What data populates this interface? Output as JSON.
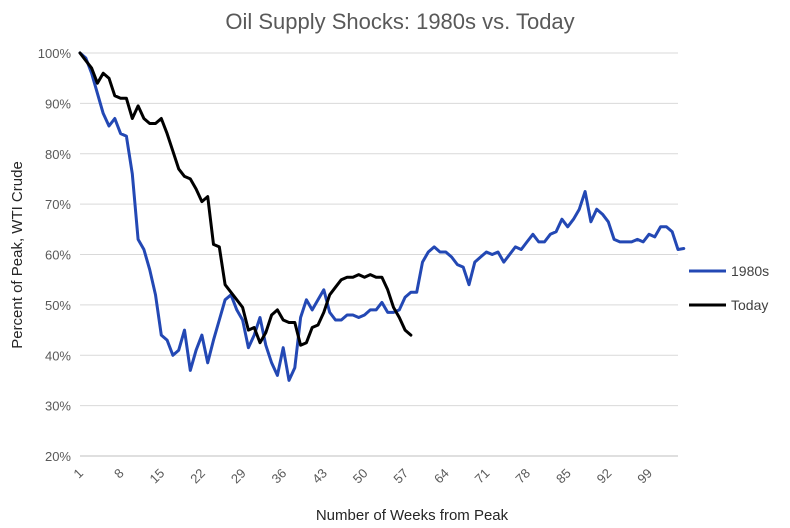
{
  "chart_data": {
    "type": "line",
    "title": "Oil Supply Shocks: 1980s vs. Today",
    "xlabel": "Number of Weeks from Peak",
    "ylabel": "Percent of Peak, WTI Crude",
    "xlim": [
      1,
      104
    ],
    "ylim": [
      20,
      100
    ],
    "x_ticks": [
      1,
      8,
      15,
      22,
      29,
      36,
      43,
      50,
      57,
      64,
      71,
      78,
      85,
      92,
      99
    ],
    "y_ticks": [
      20,
      30,
      40,
      50,
      60,
      70,
      80,
      90,
      100
    ],
    "y_tick_labels": [
      "20%",
      "30%",
      "40%",
      "50%",
      "60%",
      "70%",
      "80%",
      "90%",
      "100%"
    ],
    "grid": "horizontal",
    "legend_position": "right",
    "series": [
      {
        "name": "1980s",
        "color": "#2348b4",
        "values": [
          100,
          99,
          96,
          92,
          88,
          85.5,
          87,
          84,
          83.5,
          76,
          63,
          61,
          57,
          52,
          44,
          43,
          40,
          41,
          45,
          37,
          41,
          44,
          38.5,
          43,
          47,
          51,
          52,
          49,
          47,
          41.5,
          44,
          47.5,
          42,
          38.5,
          36,
          41.5,
          35,
          37.5,
          47.5,
          51,
          49,
          51,
          53,
          48.5,
          47,
          47,
          48,
          48,
          47.5,
          48,
          49,
          49,
          50.5,
          48.5,
          48.5,
          49,
          51.5,
          52.5,
          52.5,
          58.5,
          60.5,
          61.5,
          60.5,
          60.5,
          59.5,
          58,
          57.5,
          54,
          58.5,
          59.5,
          60.5,
          60,
          60.5,
          58.5,
          60,
          61.5,
          61,
          62.5,
          64,
          62.5,
          62.5,
          64,
          64.5,
          67,
          65.5,
          67,
          69,
          72.5,
          66.5,
          69,
          68,
          66.5,
          63,
          62.5,
          62.5,
          62.5,
          63,
          62.5,
          64,
          63.5,
          65.5,
          65.5,
          64.5,
          61,
          61.2
        ]
      },
      {
        "name": "Today",
        "color": "#000000",
        "values": [
          100,
          98.5,
          97,
          94,
          96,
          95,
          91.5,
          91,
          91,
          87,
          89.5,
          87,
          86,
          86,
          87,
          84,
          80.5,
          77,
          75.5,
          75,
          73,
          70.5,
          71.5,
          62,
          61.5,
          54,
          52.5,
          51,
          49.5,
          45,
          45.5,
          42.5,
          44.5,
          48,
          49,
          47,
          46.5,
          46.5,
          42,
          42.5,
          45.5,
          46,
          48.5,
          52,
          53.5,
          55,
          55.5,
          55.5,
          56,
          55.5,
          56,
          55.5,
          55.5,
          53,
          49.5,
          47.5,
          45,
          44
        ]
      }
    ]
  }
}
